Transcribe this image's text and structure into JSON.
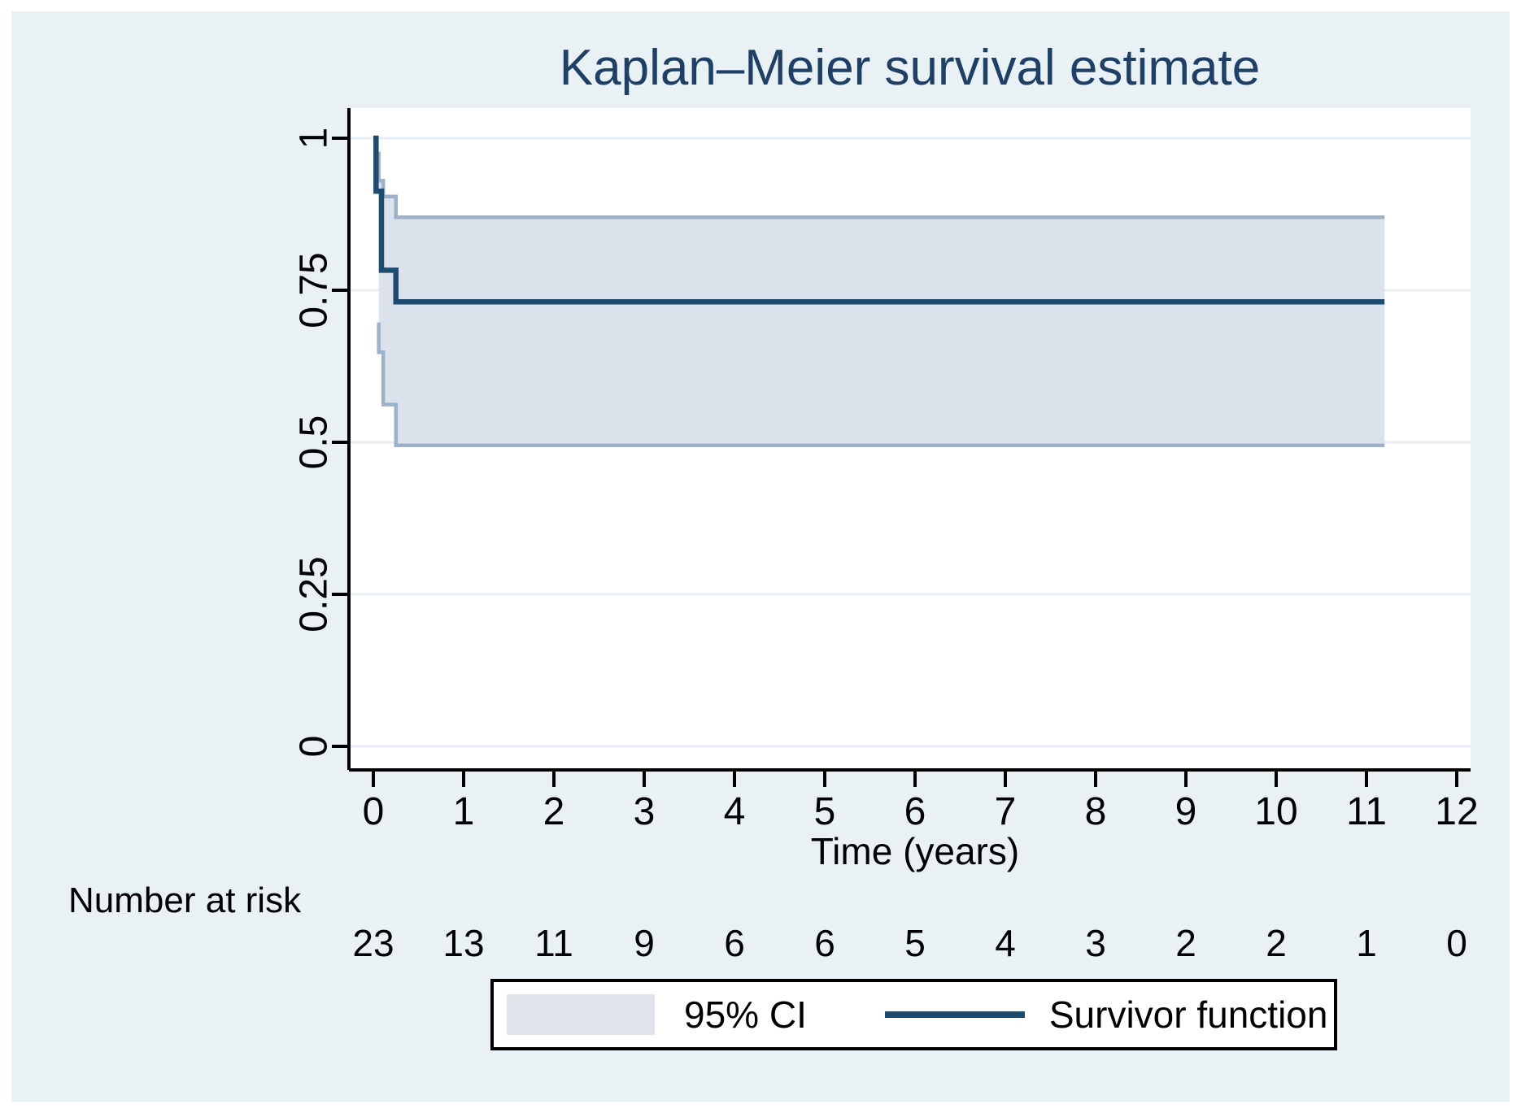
{
  "title": "Kaplan–Meier survival estimate",
  "legend": {
    "ci_label": "95% CI",
    "survivor_label": "Survivor function"
  },
  "colors": {
    "figure_background": "#e9f1f5",
    "plot_background": "#ffffff",
    "grid": "#e7eef4",
    "axis": "#000000",
    "axis_text": "#000000",
    "title_text": "#1e3f66",
    "survivor_line": "#1e4c70",
    "ci_fill": "#dce2ec",
    "ci_edge": "#9db1c9",
    "legend_swatch": "#e1e4ea"
  },
  "chart_data": {
    "type": "line",
    "subtype": "kaplan-meier-step",
    "title": "Kaplan–Meier survival estimate",
    "xlabel": "Time (years)",
    "ylabel": "",
    "xlim": [
      0,
      12.4
    ],
    "ylim": [
      0,
      1
    ],
    "grid": true,
    "legend_position": "bottom",
    "x_ticks": [
      0,
      1,
      2,
      3,
      4,
      5,
      6,
      7,
      8,
      9,
      10,
      11,
      12
    ],
    "y_ticks": [
      0,
      0.25,
      0.5,
      0.75,
      1
    ],
    "y_tick_labels": [
      "0",
      "0.25",
      "0.5",
      "0.75",
      "1"
    ],
    "series": [
      {
        "name": "Survivor function",
        "role": "survivor",
        "points": [
          [
            0,
            1
          ],
          [
            0.03,
            1
          ],
          [
            0.03,
            0.913
          ],
          [
            0.09,
            0.913
          ],
          [
            0.09,
            0.783
          ],
          [
            0.25,
            0.783
          ],
          [
            0.25,
            0.731
          ],
          [
            11.2,
            0.731
          ]
        ]
      },
      {
        "name": "95% CI upper",
        "role": "ci-upper",
        "points": [
          [
            0.06,
            0.978
          ],
          [
            0.06,
            0.93
          ],
          [
            0.11,
            0.93
          ],
          [
            0.11,
            0.904
          ],
          [
            0.25,
            0.904
          ],
          [
            0.25,
            0.87
          ],
          [
            11.2,
            0.87
          ]
        ]
      },
      {
        "name": "95% CI lower",
        "role": "ci-lower",
        "points": [
          [
            0.06,
            0.697
          ],
          [
            0.06,
            0.648
          ],
          [
            0.11,
            0.648
          ],
          [
            0.11,
            0.562
          ],
          [
            0.25,
            0.562
          ],
          [
            0.25,
            0.495
          ],
          [
            11.2,
            0.495
          ]
        ]
      }
    ],
    "number_at_risk": {
      "label": "Number at risk",
      "times": [
        0,
        1,
        2,
        3,
        4,
        5,
        6,
        7,
        8,
        9,
        10,
        11,
        12
      ],
      "values": [
        "23",
        "13",
        "11",
        "9",
        "6",
        "6",
        "5",
        "4",
        "3",
        "2",
        "2",
        "1",
        "0"
      ]
    }
  }
}
